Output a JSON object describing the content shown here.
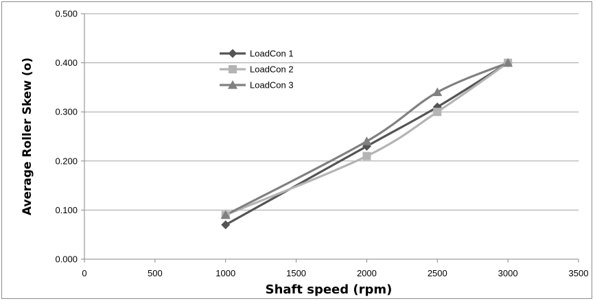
{
  "chart_data": {
    "type": "line",
    "title": "",
    "xlabel": "Shaft speed (rpm)",
    "ylabel": "Average Roller Skew (o)",
    "xlim": [
      0,
      3500
    ],
    "ylim": [
      0,
      0.5
    ],
    "x_ticks": [
      "0",
      "500",
      "1000",
      "1500",
      "2000",
      "2500",
      "3000",
      "3500"
    ],
    "y_ticks": [
      "0.000",
      "0.100",
      "0.200",
      "0.300",
      "0.400",
      "0.500"
    ],
    "grid": "horizontal",
    "legend_position": "top-left",
    "x": [
      1000,
      2000,
      2500,
      3000
    ],
    "series": [
      {
        "name": "LoadCon 1",
        "values": [
          0.07,
          0.23,
          0.31,
          0.4
        ],
        "marker": "diamond",
        "color": "#545454"
      },
      {
        "name": "LoadCon 2",
        "values": [
          0.09,
          0.21,
          0.3,
          0.4
        ],
        "marker": "square",
        "color": "#b4b4b4"
      },
      {
        "name": "LoadCon 3",
        "values": [
          0.09,
          0.24,
          0.34,
          0.4
        ],
        "marker": "triangle",
        "color": "#808080"
      }
    ]
  }
}
